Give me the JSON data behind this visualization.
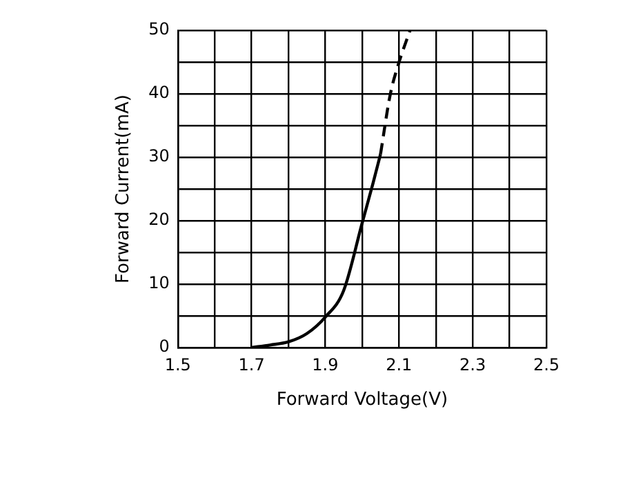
{
  "chart_data": {
    "type": "line",
    "xlabel": "Forward Voltage(V)",
    "ylabel": "Forward Current(mA)",
    "xlim": [
      1.5,
      2.5
    ],
    "ylim": [
      0,
      50
    ],
    "xticks": [
      1.5,
      {
        "value": 1.6,
        "label": null
      },
      1.7,
      {
        "value": 1.8,
        "label": null
      },
      1.9,
      {
        "value": 2.0,
        "label": null
      },
      2.1,
      {
        "value": 2.2,
        "label": null
      },
      2.3,
      {
        "value": 2.4,
        "label": null
      },
      2.5
    ],
    "yticks": [
      0,
      {
        "value": 5,
        "label": null
      },
      10,
      {
        "value": 15,
        "label": null
      },
      20,
      {
        "value": 25,
        "label": null
      },
      30,
      {
        "value": 35,
        "label": null
      },
      40,
      {
        "value": 45,
        "label": null
      },
      50
    ],
    "grid": true,
    "legend": false,
    "marker": "none",
    "series": [
      {
        "color": "#000000",
        "line_style": "solid",
        "x": [
          1.7,
          1.75,
          1.8,
          1.85,
          1.9,
          1.95,
          2.0,
          2.03,
          2.05
        ],
        "values": [
          0,
          0.4,
          0.9,
          2.2,
          4.8,
          9,
          19.6,
          26,
          30.5
        ]
      },
      {
        "color": "#000000",
        "line_style": "dashed",
        "x": [
          2.05,
          2.076,
          2.097,
          2.13
        ],
        "values": [
          30.5,
          39.8,
          44.4,
          50
        ]
      }
    ]
  }
}
